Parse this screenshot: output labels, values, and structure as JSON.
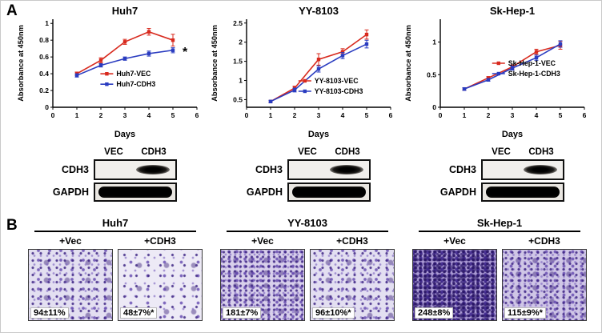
{
  "figure": {
    "panel_a_label": "A",
    "panel_b_label": "B"
  },
  "colors": {
    "vec_series": "#d82a1e",
    "cdh3_series": "#2a3cc0"
  },
  "chart_data": [
    {
      "type": "line",
      "title": "Huh7",
      "xlabel": "Days",
      "ylabel": "Absorbance at 450nm",
      "xlim": [
        0,
        6
      ],
      "xticks": [
        0,
        1,
        2,
        3,
        4,
        5,
        6
      ],
      "ylim": [
        0,
        1.05
      ],
      "yticks": [
        0,
        0.2,
        0.4,
        0.6,
        0.8,
        1
      ],
      "x": [
        1,
        2,
        3,
        4,
        5
      ],
      "series": [
        {
          "name": "Huh7-VEC",
          "color": "#d82a1e",
          "values": [
            0.4,
            0.56,
            0.78,
            0.9,
            0.8
          ],
          "errors": [
            0.02,
            0.03,
            0.03,
            0.04,
            0.07
          ]
        },
        {
          "name": "Huh7-CDH3",
          "color": "#2a3cc0",
          "values": [
            0.38,
            0.5,
            0.58,
            0.64,
            0.68
          ],
          "errors": [
            0.02,
            0.02,
            0.02,
            0.03,
            0.03
          ]
        }
      ],
      "legend": [
        0.33,
        0.62
      ],
      "annotation": {
        "text": "*",
        "x": 5.4,
        "y": 0.66
      }
    },
    {
      "type": "line",
      "title": "YY-8103",
      "xlabel": "Days",
      "ylabel": "Absorbance at 450nm",
      "xlim": [
        0,
        6
      ],
      "xticks": [
        0,
        1,
        2,
        3,
        4,
        5,
        6
      ],
      "ylim": [
        0.3,
        2.6
      ],
      "yticks": [
        0.5,
        1,
        1.5,
        2,
        2.5
      ],
      "x": [
        1,
        2,
        3,
        4,
        5
      ],
      "series": [
        {
          "name": "YY-8103-VEC",
          "color": "#d82a1e",
          "values": [
            0.45,
            0.8,
            1.55,
            1.75,
            2.2
          ],
          "errors": [
            0.03,
            0.05,
            0.15,
            0.08,
            0.12
          ]
        },
        {
          "name": "YY-8103-CDH3",
          "color": "#2a3cc0",
          "values": [
            0.45,
            0.75,
            1.3,
            1.65,
            1.95
          ],
          "errors": [
            0.03,
            0.05,
            0.08,
            0.08,
            0.1
          ]
        }
      ],
      "legend": [
        0.36,
        0.7
      ]
    },
    {
      "type": "line",
      "title": "Sk-Hep-1",
      "xlabel": "Days",
      "ylabel": "Absorbance at 450nm",
      "xlim": [
        0,
        6
      ],
      "xticks": [
        0,
        1,
        2,
        3,
        4,
        5,
        6
      ],
      "ylim": [
        0,
        1.35
      ],
      "yticks": [
        0,
        0.5,
        1
      ],
      "x": [
        1,
        2,
        3,
        4,
        5
      ],
      "series": [
        {
          "name": "Sk-Hep-1-VEC",
          "color": "#d82a1e",
          "values": [
            0.28,
            0.45,
            0.62,
            0.85,
            0.95
          ],
          "errors": [
            0.02,
            0.02,
            0.03,
            0.04,
            0.06
          ]
        },
        {
          "name": "Sk-Hep-1-CDH3",
          "color": "#2a3cc0",
          "values": [
            0.28,
            0.42,
            0.6,
            0.76,
            0.97
          ],
          "errors": [
            0.02,
            0.02,
            0.03,
            0.04,
            0.05
          ]
        }
      ],
      "legend": [
        0.36,
        0.5
      ]
    }
  ],
  "blots": [
    {
      "lanes": [
        "VEC",
        "CDH3"
      ],
      "rows": [
        "CDH3",
        "GAPDH"
      ]
    },
    {
      "lanes": [
        "VEC",
        "CDH3"
      ],
      "rows": [
        "CDH3",
        "GAPDH"
      ]
    },
    {
      "lanes": [
        "VEC",
        "CDH3"
      ],
      "rows": [
        "CDH3",
        "GAPDH"
      ]
    }
  ],
  "panel_b": {
    "groups": [
      {
        "title": "Huh7",
        "images": [
          {
            "label": "+Vec",
            "value": "94±11%",
            "density": "medium"
          },
          {
            "label": "+CDH3",
            "value": "48±7%*",
            "density": "light"
          }
        ]
      },
      {
        "title": "YY-8103",
        "images": [
          {
            "label": "+Vec",
            "value": "181±7%",
            "density": "dense"
          },
          {
            "label": "+CDH3",
            "value": "96±10%*",
            "density": "medium"
          }
        ]
      },
      {
        "title": "Sk-Hep-1",
        "images": [
          {
            "label": "+Vec",
            "value": "248±8%",
            "density": "xdense"
          },
          {
            "label": "+CDH3",
            "value": "115±9%*",
            "density": "mdense"
          }
        ]
      }
    ]
  }
}
